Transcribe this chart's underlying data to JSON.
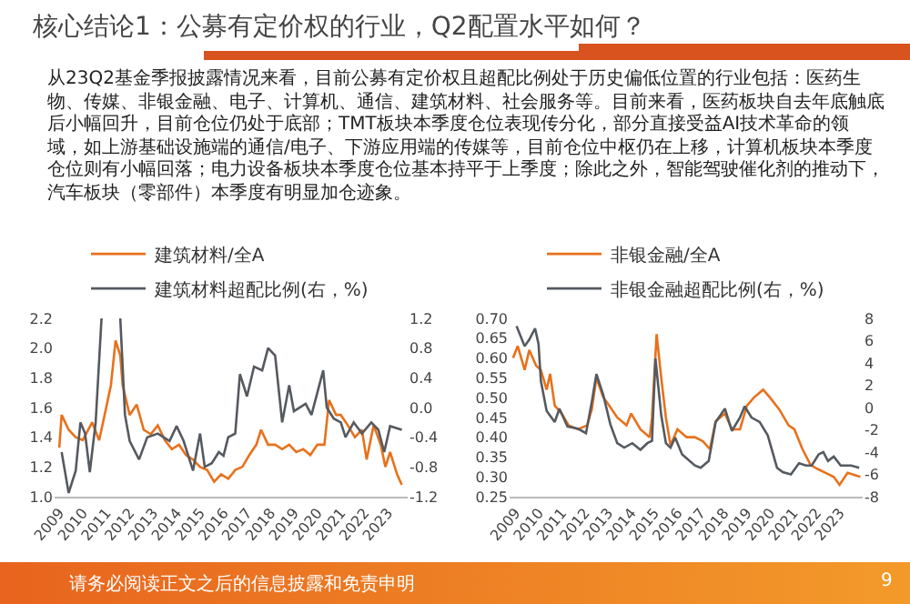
{
  "chart_data": [
    {
      "type": "other",
      "title": "核心结论1：公募有定价权的行业，Q2配置水平如何？",
      "annotations": [
        "从23Q2基金季报披露情况来看，目前公募有定价权且超配比例处于历史偏低位置的行业包括：医药生物、传媒、非银金融、电子、计算机、通信、建筑材料、社会服务等。目前来看，医药板块自去年底触底后小幅回升，目前仓位仍处于底部；TMT板块本季度仓位表现传分化，部分直接受益AI技术革命的领域，如上游基础设施端的通信/电子、下游应用端的传媒等，目前仓位中枢仍在上移，计算机板块本季度仓位则有小幅回落；电力设备板块本季度仓位基本持平于上季度；除此之外，智能驾驶催化剂的推动下，汽车板块（零部件）本季度有明显加仓迹象。",
        "请务必阅读正文之后的信息披露和免责申明",
        "9"
      ]
    },
    {
      "type": "line",
      "legend": "top",
      "marker": "none",
      "line_style": "solid",
      "grid": false,
      "xlim": [
        2008.8,
        2023.85
      ],
      "xticks": [
        2009,
        2010,
        2011,
        2012,
        2013,
        2014,
        2015,
        2016,
        2017,
        2018,
        2019,
        2020,
        2021,
        2022,
        2023
      ],
      "ylim": [
        1.0,
        2.2
      ],
      "yticks": [
        {
          "value": 1.0,
          "label": "1.0"
        },
        1.2,
        1.4,
        1.6,
        1.8,
        {
          "value": 2.0,
          "label": "2.0"
        },
        2.2
      ],
      "y2lim": [
        -1.2,
        1.2
      ],
      "y2ticks": [
        -1.2,
        -0.8,
        -0.4,
        {
          "value": 0,
          "label": "0.0"
        },
        0.4,
        0.8,
        1.2
      ],
      "series": [
        {
          "name": "建筑材料/全A",
          "color": "#e8711c",
          "x": [
            2009.0,
            2009.1,
            2009.4,
            2009.7,
            2010.0,
            2010.4,
            2010.7,
            2011.0,
            2011.2,
            2011.4,
            2011.6,
            2011.7,
            2012.0,
            2012.3,
            2012.6,
            2012.9,
            2013.2,
            2013.5,
            2013.8,
            2014.1,
            2014.4,
            2014.7,
            2015.0,
            2015.3,
            2015.6,
            2015.9,
            2016.2,
            2016.5,
            2016.8,
            2017.1,
            2017.4,
            2017.6,
            2017.9,
            2018.2,
            2018.5,
            2018.8,
            2019.1,
            2019.4,
            2019.7,
            2020.0,
            2020.3,
            2020.5,
            2020.8,
            2021.0,
            2021.3,
            2021.6,
            2021.9,
            2022.1,
            2022.4,
            2022.7,
            2022.9,
            2023.1,
            2023.4,
            2023.6
          ],
          "values": [
            1.33,
            1.55,
            1.45,
            1.4,
            1.38,
            1.5,
            1.38,
            1.6,
            1.75,
            2.05,
            1.95,
            1.75,
            1.55,
            1.62,
            1.45,
            1.42,
            1.48,
            1.38,
            1.32,
            1.35,
            1.28,
            1.25,
            1.2,
            1.18,
            1.1,
            1.15,
            1.12,
            1.18,
            1.2,
            1.28,
            1.35,
            1.45,
            1.35,
            1.35,
            1.32,
            1.35,
            1.3,
            1.32,
            1.28,
            1.35,
            1.35,
            1.65,
            1.55,
            1.55,
            1.48,
            1.4,
            1.45,
            1.25,
            1.48,
            1.35,
            1.2,
            1.3,
            1.15,
            1.08
          ]
        },
        {
          "name": "建筑材料超配比例(右，%)",
          "color": "#555a60",
          "axis": "y2",
          "x": [
            2009.1,
            2009.4,
            2009.7,
            2009.9,
            2010.1,
            2010.3,
            2010.55,
            2010.8,
            2011.2,
            2011.6,
            2011.8,
            2012.0,
            2012.4,
            2012.75,
            2013.2,
            2013.7,
            2014.0,
            2014.3,
            2014.7,
            2015.0,
            2015.2,
            2015.5,
            2015.8,
            2016.0,
            2016.2,
            2016.5,
            2016.7,
            2017.0,
            2017.3,
            2017.65,
            2017.9,
            2018.2,
            2018.5,
            2018.8,
            2019.0,
            2019.5,
            2019.75,
            2020.25,
            2020.4,
            2020.7,
            2021.0,
            2021.2,
            2021.55,
            2021.9,
            2022.3,
            2022.6,
            2022.85,
            2023.1,
            2023.6
          ],
          "values": [
            -0.6,
            -1.15,
            -0.85,
            -0.2,
            -0.35,
            -0.87,
            -0.2,
            1.2,
            null,
            1.2,
            -0.1,
            -0.45,
            -0.7,
            -0.4,
            -0.35,
            -0.45,
            -0.25,
            -0.45,
            -0.85,
            -0.35,
            -0.8,
            -0.75,
            -0.6,
            -0.65,
            -0.4,
            -0.35,
            0.45,
            0.15,
            0.55,
            0.5,
            0.8,
            0.7,
            -0.2,
            0.3,
            -0.05,
            0.05,
            -0.1,
            0.5,
            0.0,
            -0.15,
            -0.2,
            -0.4,
            -0.2,
            -0.35,
            -0.2,
            -0.3,
            -0.6,
            -0.25,
            -0.3
          ]
        }
      ]
    },
    {
      "type": "line",
      "legend": "top",
      "marker": "none",
      "line_style": "solid",
      "grid": false,
      "xlim": [
        2008.75,
        2024.0
      ],
      "xticks": [
        2009,
        2010,
        2011,
        2012,
        2013,
        2014,
        2015,
        2016,
        2017,
        2018,
        2019,
        2020,
        2021,
        2022,
        2023
      ],
      "ylim": [
        0.25,
        0.7
      ],
      "yticks": [
        0.25,
        {
          "value": 0.3,
          "label": "0.30"
        },
        0.35,
        {
          "value": 0.4,
          "label": "0.40"
        },
        0.45,
        {
          "value": 0.5,
          "label": "0.50"
        },
        0.55,
        {
          "value": 0.6,
          "label": "0.60"
        },
        0.65,
        {
          "value": 0.7,
          "label": "0.70"
        }
      ],
      "y2lim": [
        -8,
        8
      ],
      "y2ticks": [
        -8,
        -6,
        -4,
        -2,
        0,
        2,
        4,
        6,
        8
      ],
      "series": [
        {
          "name": "非银金融/全A",
          "color": "#e8711c",
          "x": [
            2008.9,
            2009.1,
            2009.4,
            2009.6,
            2009.9,
            2010.1,
            2010.35,
            2010.5,
            2010.7,
            2011.0,
            2011.3,
            2011.7,
            2012.1,
            2012.3,
            2012.5,
            2012.8,
            2013.05,
            2013.4,
            2013.8,
            2014.0,
            2014.4,
            2014.8,
            2014.9,
            2015.1,
            2015.3,
            2015.5,
            2015.7,
            2016.0,
            2016.4,
            2016.75,
            2017.1,
            2017.4,
            2017.65,
            2018.05,
            2018.35,
            2018.7,
            2019.0,
            2019.3,
            2019.7,
            2020.0,
            2020.4,
            2020.8,
            2021.05,
            2021.4,
            2021.75,
            2022.05,
            2022.4,
            2022.75,
            2023.0,
            2023.35,
            2023.9
          ],
          "values": [
            0.6,
            0.63,
            0.57,
            0.62,
            0.58,
            0.57,
            0.52,
            0.56,
            0.48,
            0.46,
            0.43,
            0.42,
            0.43,
            0.47,
            0.55,
            0.5,
            0.48,
            0.45,
            0.43,
            0.46,
            0.42,
            0.4,
            0.45,
            0.66,
            0.55,
            0.45,
            0.38,
            0.42,
            0.4,
            0.4,
            0.39,
            0.37,
            0.44,
            0.46,
            0.42,
            0.42,
            0.48,
            0.5,
            0.52,
            0.5,
            0.47,
            0.43,
            0.42,
            0.37,
            0.33,
            0.32,
            0.31,
            0.3,
            0.28,
            0.31,
            0.3
          ]
        },
        {
          "name": "非银金融超配比例(右，%)",
          "color": "#555a60",
          "axis": "y2",
          "x": [
            2009.05,
            2009.4,
            2009.6,
            2009.85,
            2010.0,
            2010.1,
            2010.35,
            2010.7,
            2010.9,
            2011.25,
            2011.7,
            2012.05,
            2012.3,
            2012.5,
            2012.8,
            2013.1,
            2013.4,
            2013.7,
            2014.05,
            2014.4,
            2014.7,
            2014.9,
            2015.05,
            2015.3,
            2015.5,
            2015.7,
            2015.9,
            2016.2,
            2016.75,
            2017.0,
            2017.35,
            2017.65,
            2018.05,
            2018.35,
            2018.7,
            2018.9,
            2019.2,
            2019.55,
            2019.9,
            2020.3,
            2020.55,
            2020.9,
            2021.25,
            2021.55,
            2021.8,
            2022.1,
            2022.3,
            2022.5,
            2022.75,
            2023.05,
            2023.5,
            2023.85
          ],
          "values": [
            7.3,
            5.5,
            6.1,
            7.1,
            5.7,
            2.4,
            -0.3,
            -1.3,
            -0.1,
            -1.7,
            -1.9,
            -2.3,
            0.5,
            3.0,
            1.1,
            -1.5,
            -3.2,
            -3.6,
            -3.2,
            -3.8,
            -3.2,
            -3.0,
            4.4,
            -0.7,
            -3.2,
            -3.6,
            -2.7,
            -4.2,
            -5.2,
            -5.4,
            -4.8,
            -1.3,
            -0.1,
            -2.1,
            -0.9,
            0.1,
            -0.9,
            -1.3,
            -2.5,
            -5.4,
            -5.8,
            -6.0,
            -5.0,
            -5.2,
            -5.2,
            -4.2,
            -4.0,
            -4.8,
            -4.4,
            -5.2,
            -5.2,
            -5.4
          ]
        }
      ]
    }
  ]
}
